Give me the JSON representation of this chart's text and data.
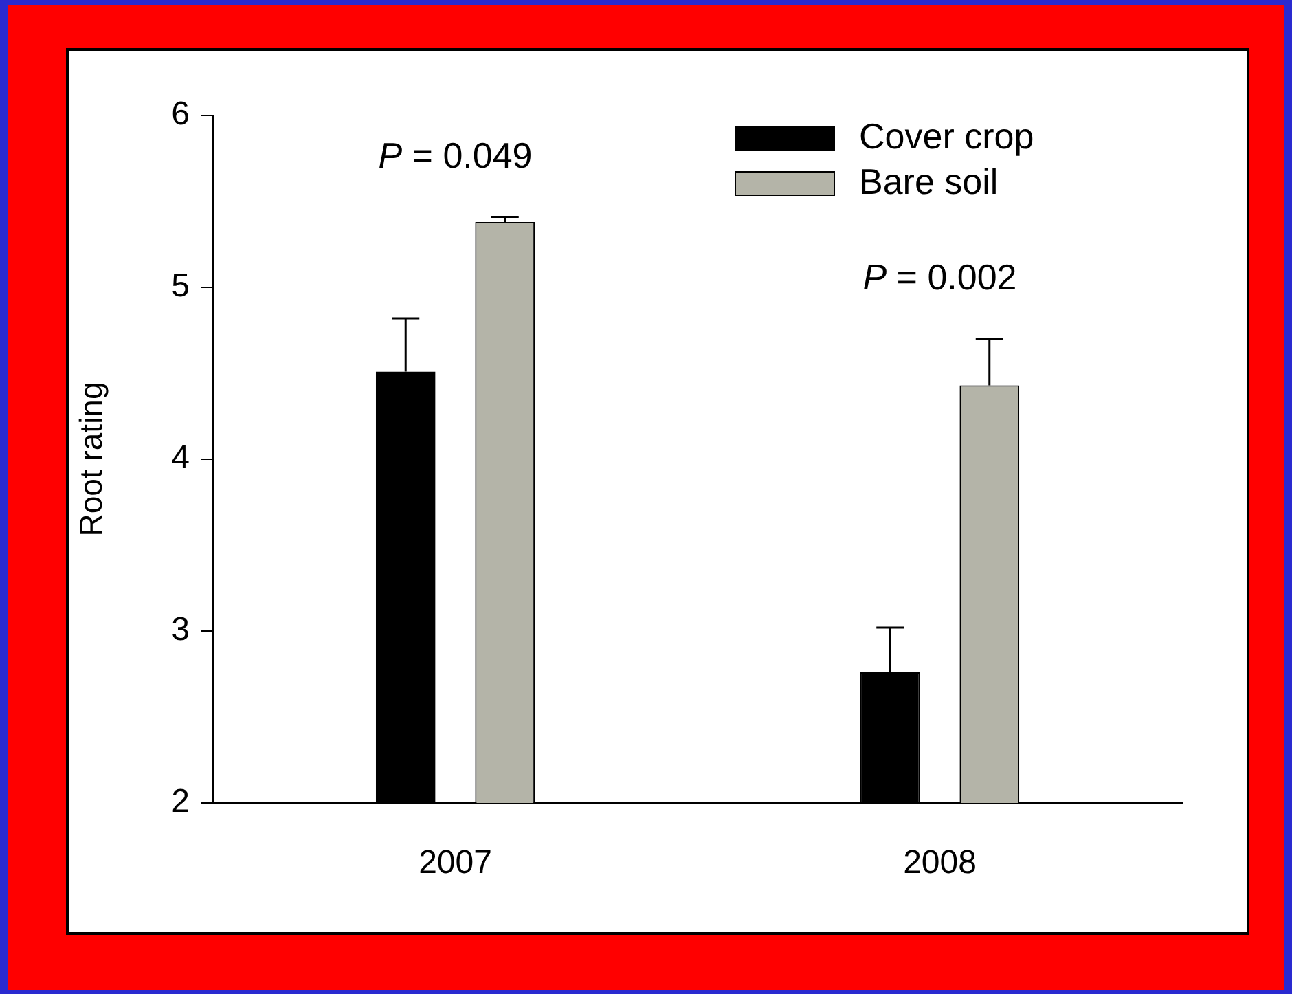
{
  "chart_data": {
    "type": "bar",
    "ylabel": "Root rating",
    "categories": [
      "2007",
      "2008"
    ],
    "series": [
      {
        "name": "Cover crop",
        "color": "#000000",
        "values": [
          4.51,
          2.76
        ],
        "errors": [
          [
            4.51,
            4.82
          ],
          [
            2.76,
            3.02
          ]
        ]
      },
      {
        "name": "Bare soil",
        "color": "#b4b4a8",
        "values": [
          5.38,
          4.43
        ],
        "errors": [
          [
            5.38,
            5.41
          ],
          [
            4.43,
            4.7
          ]
        ]
      }
    ],
    "ylim": [
      2,
      6
    ],
    "yticks": [
      2,
      3,
      4,
      5,
      6
    ],
    "grid": false,
    "legend": "top right",
    "annotations": [
      "P = 0.049",
      "P = 0.002"
    ]
  }
}
